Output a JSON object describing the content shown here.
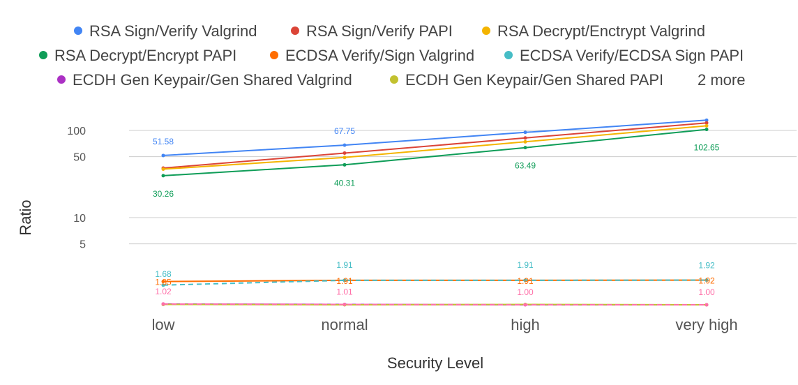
{
  "chart_data": {
    "type": "line",
    "xlabel": "Security Level",
    "ylabel": "Ratio",
    "yscale": "log",
    "ylim": [
      1,
      150
    ],
    "yticks": [
      "100",
      "50",
      "10",
      "5"
    ],
    "grid": true,
    "legend_position": "top",
    "legend_more_text": "2 more",
    "categories": [
      "low",
      "normal",
      "high",
      "very high"
    ],
    "series": [
      {
        "name": "RSA Sign/Verify Valgrind",
        "color": "#4285F4",
        "values": [
          51.58,
          67.75,
          95,
          131
        ],
        "labels": [
          "51.58",
          "67.75",
          null,
          null
        ],
        "dashed": false
      },
      {
        "name": "RSA Sign/Verify PAPI",
        "color": "#DB4437",
        "values": [
          37,
          55,
          82,
          122
        ],
        "labels": [
          null,
          null,
          null,
          null
        ],
        "dashed": false
      },
      {
        "name": "RSA Decrypt/Enctrypt Valgrind",
        "color": "#F4B400",
        "values": [
          36,
          49,
          74,
          113
        ],
        "labels": [
          null,
          null,
          null,
          null
        ],
        "dashed": false
      },
      {
        "name": "RSA Decrypt/Encrypt PAPI",
        "color": "#0F9D58",
        "values": [
          30.26,
          40.31,
          63.49,
          102.65
        ],
        "labels": [
          "30.26",
          "40.31",
          "63.49",
          "102.65"
        ],
        "dashed": false
      },
      {
        "name": "ECDSA Verify/Sign Valgrind",
        "color": "#FF6D01",
        "values": [
          1.85,
          1.91,
          1.91,
          1.92
        ],
        "labels": [
          "1.85",
          "1.91",
          "1.91",
          "1.92"
        ],
        "dashed": false
      },
      {
        "name": "ECDSA Verify/ECDSA Sign PAPI",
        "color": "#46BDC6",
        "values": [
          1.68,
          1.91,
          1.91,
          1.92
        ],
        "labels": [
          "1.68",
          "1.91",
          "1.91",
          "1.92"
        ],
        "dashed": true
      },
      {
        "name": "ECDH Gen Keypair/Gen Shared Valgrind",
        "color": "#AB30C4",
        "values": [
          1.02,
          1.01,
          1.0,
          1.0
        ],
        "labels": [
          null,
          null,
          null,
          null
        ],
        "dashed": false
      },
      {
        "name": "ECDH Gen Keypair/Gen Shared PAPI",
        "color": "#C2C12F",
        "values": [
          1.01,
          1.0,
          1.01,
          1.0
        ],
        "labels": [
          null,
          null,
          null,
          null
        ],
        "dashed": false
      },
      {
        "name": "",
        "color": "#FF6FA8",
        "values": [
          1.02,
          1.01,
          1.0,
          1.0
        ],
        "labels": [
          "1.02",
          "1.01",
          "1.00",
          "1.00"
        ],
        "dashed": true
      }
    ]
  }
}
